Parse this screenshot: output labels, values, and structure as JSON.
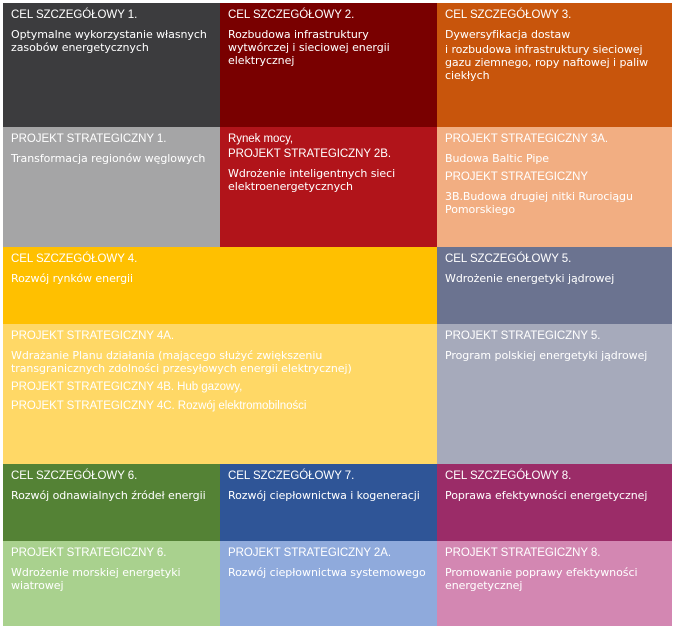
{
  "cells": [
    {
      "heading": "CEL SZCZEGÓŁOWY 1.",
      "lines": [
        "Optymalne wykorzystanie własnych zasobów energetycznych"
      ],
      "color": "#3c3c3e"
    },
    {
      "heading": "CEL SZCZEGÓŁOWY 2.",
      "lines": [
        "Rozbudowa infrastruktury wytwórczej i sieciowej energii elektrycznej"
      ],
      "color": "#790000"
    },
    {
      "heading": "CEL SZCZEGÓŁOWY 3.",
      "lines": [
        "Dywersyfikacja dostaw",
        "i rozbudowa infrastruktury sieciowej gazu ziemnego, ropy naftowej i paliw ciekłych"
      ],
      "color": "#c8550c"
    },
    {
      "heading": "PROJEKT STRATEGICZNY 1.",
      "lines": [
        "Transformacja regionów węglowych"
      ],
      "color": "#a5a5a6"
    },
    {
      "heading": "Rynek mocy,",
      "lines": [
        "PROJEKT STRATEGICZNY 2B.",
        "Wdrożenie inteligentnych sieci elektroenergetycznych"
      ],
      "color": "#b1141a"
    },
    {
      "heading": "PROJEKT STRATEGICZNY 3A.",
      "lines": [
        "Budowa Baltic Pipe",
        "PROJEKT STRATEGICZNY",
        "3B.Budowa drugiej nitki Rurociągu Pomorskiego"
      ],
      "color": "#f2ae82"
    },
    {
      "heading": "CEL SZCZEGÓŁOWY 4.",
      "lines": [
        "Rozwój rynków energii"
      ],
      "color": "#ffc000"
    },
    {
      "heading": "CEL SZCZEGÓŁOWY 5.",
      "lines": [
        "Wdrożenie energetyki jądrowej"
      ],
      "color": "#6b7390"
    },
    {
      "heading": "PROJEKT STRATEGICZNY 4A.",
      "lines": [
        "Wdrażanie Planu działania (mającego służyć zwiększeniu transgranicznych zdolności przesyłowych energii elektrycznej)",
        "PROJEKT STRATEGICZNY 4B. Hub gazowy,",
        "PROJEKT STRATEGICZNY 4C. Rozwój elektromobilności"
      ],
      "color": "#ffd866"
    },
    {
      "heading": "PROJEKT STRATEGICZNY 5.",
      "lines": [
        "Program polskiej energetyki jądrowej"
      ],
      "color": "#a6aabb"
    },
    {
      "heading": "CEL SZCZEGÓŁOWY 6.",
      "lines": [
        "Rozwój odnawialnych źródeł energii"
      ],
      "color": "#548235"
    },
    {
      "heading": "CEL SZCZEGÓŁOWY 7.",
      "lines": [
        "Rozwój ciepłownictwa i kogeneracji"
      ],
      "color": "#2f5597"
    },
    {
      "heading": "CEL SZCZEGÓŁOWY 8.",
      "lines": [
        "Poprawa efektywności energetycznej"
      ],
      "color": "#9b2c68"
    },
    {
      "heading": "PROJEKT STRATEGICZNY 6.",
      "lines": [
        "Wdrożenie morskiej energetyki wiatrowej"
      ],
      "color": "#a9d18e"
    },
    {
      "heading": "PROJEKT STRATEGICZNY 2A.",
      "lines": [
        "Rozwój ciepłownictwa systemowego"
      ],
      "color": "#8faadc"
    },
    {
      "heading": "PROJEKT STRATEGICZNY 8.",
      "lines": [
        "Promowanie poprawy efektywności energetycznej"
      ],
      "color": "#d387b2"
    }
  ]
}
